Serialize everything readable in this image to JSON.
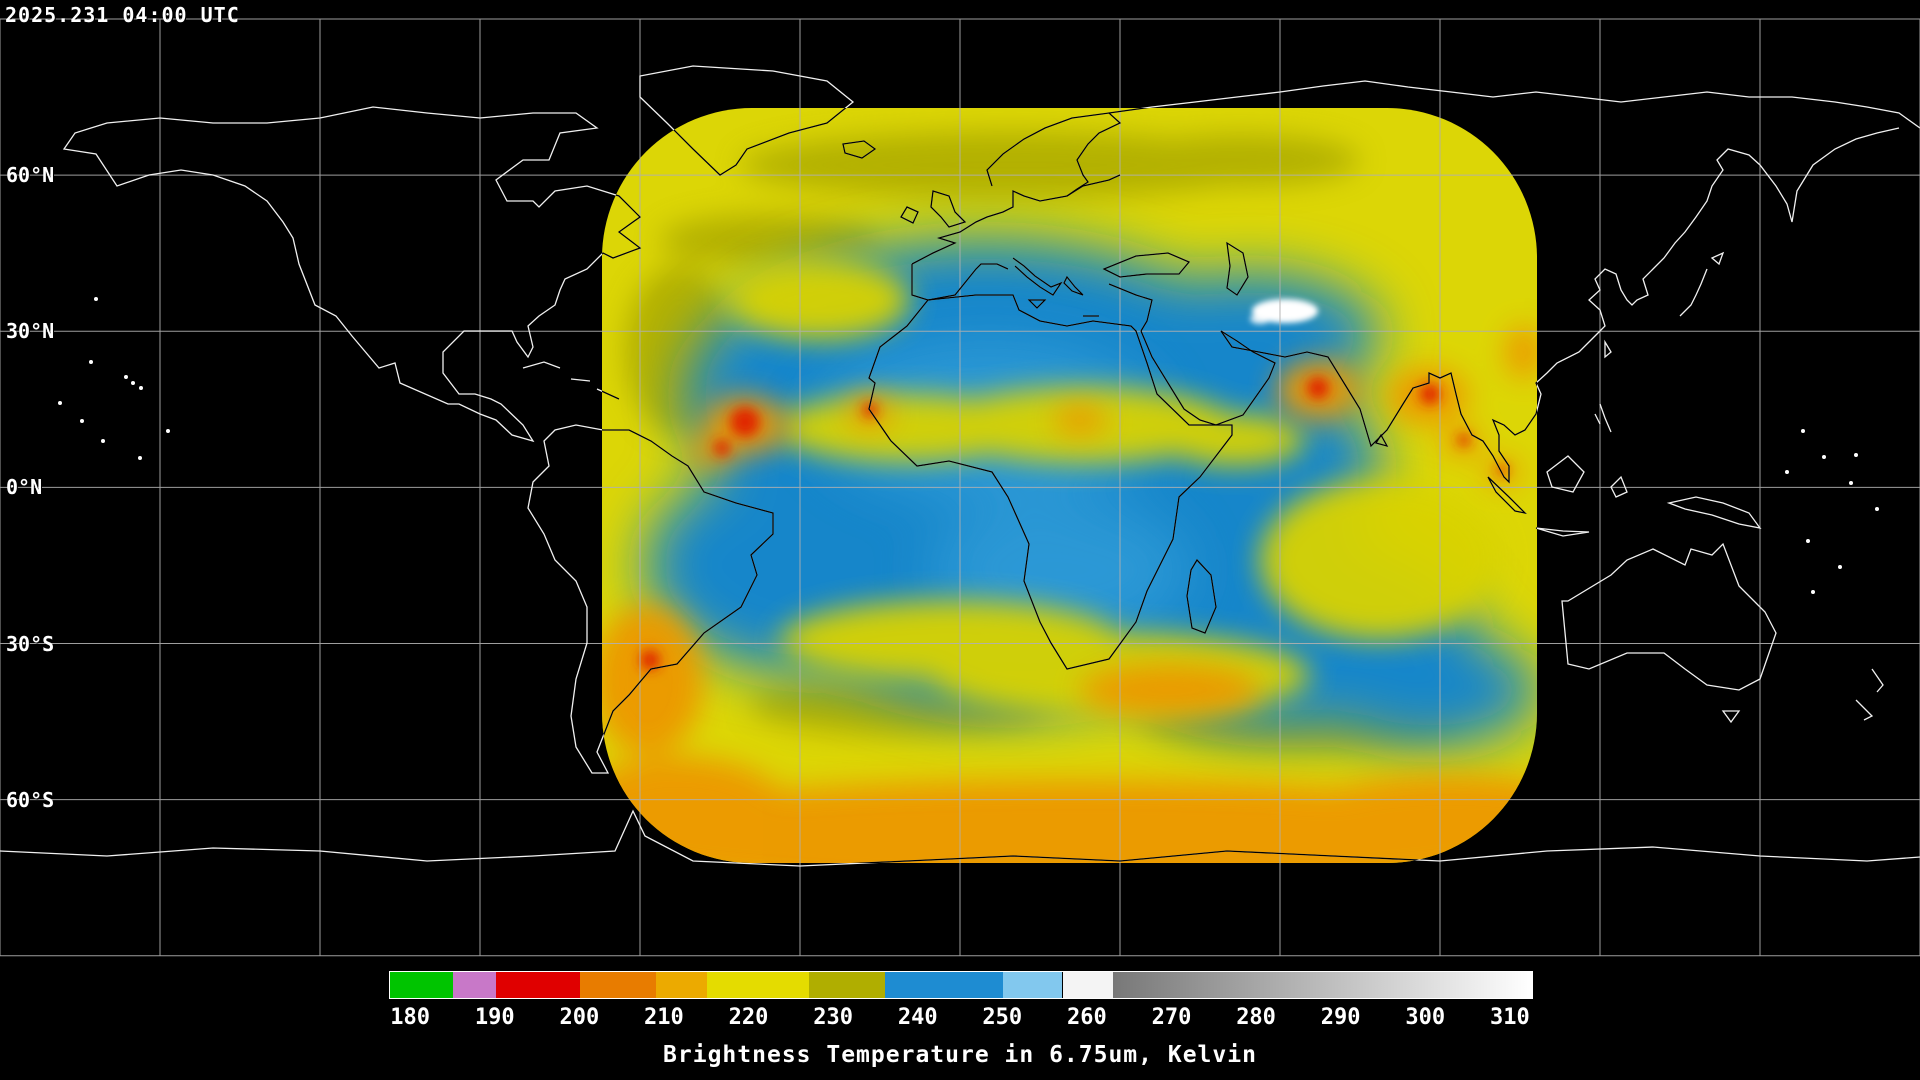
{
  "header": {
    "timestamp": "2025.231 04:00 UTC"
  },
  "map": {
    "lat_labels": [
      {
        "label": "60°N",
        "lat": 60
      },
      {
        "label": "30°N",
        "lat": 30
      },
      {
        "label": "0°N",
        "lat": 0
      },
      {
        "label": "30°S",
        "lat": -30
      },
      {
        "label": "60°S",
        "lat": -60
      }
    ],
    "grid": {
      "lon_min": -180,
      "lon_max": 180,
      "lon_step": 30,
      "lat_min": -90,
      "lat_max": 90,
      "lat_step": 30
    }
  },
  "colorbar": {
    "title": "Brightness Temperature in 6.75um, Kelvin",
    "unit": "Kelvin",
    "vmin": 177.5,
    "vmax": 312.5,
    "ticks": [
      180,
      190,
      200,
      210,
      220,
      230,
      240,
      250,
      260,
      270,
      280,
      290,
      300,
      310
    ],
    "segments": [
      {
        "from": 177.5,
        "to": 185,
        "color": "#00c400"
      },
      {
        "from": 185,
        "to": 190,
        "color": "#c878c8"
      },
      {
        "from": 190,
        "to": 200,
        "color": "#e00000"
      },
      {
        "from": 200,
        "to": 209,
        "color": "#e87c00"
      },
      {
        "from": 209,
        "to": 215,
        "color": "#ecaa00"
      },
      {
        "from": 215,
        "to": 227,
        "color": "#e4dc00"
      },
      {
        "from": 227,
        "to": 236,
        "color": "#b0ae00"
      },
      {
        "from": 236,
        "to": 250,
        "color": "#1e8cd2"
      },
      {
        "from": 250,
        "to": 257,
        "color": "#82c8ee"
      },
      {
        "from": 257,
        "to": 263,
        "color": "#f4f4f4"
      },
      {
        "from": 263,
        "to": 312.5,
        "color": "#787878",
        "color2": "#ffffff"
      }
    ]
  },
  "chart_data": {
    "type": "heatmap",
    "title": "Brightness Temperature in 6.75um, Kelvin",
    "timestamp": "2025.231 04:00 UTC",
    "value_range_kelvin": [
      180,
      310
    ],
    "colorbar_ticks": [
      180,
      190,
      200,
      210,
      220,
      230,
      240,
      250,
      260,
      270,
      280,
      290,
      300,
      310
    ]
  }
}
